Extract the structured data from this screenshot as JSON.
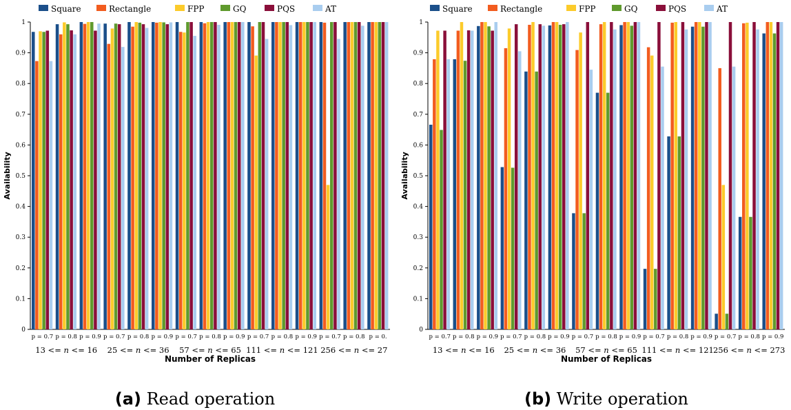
{
  "series_colors": [
    "#1b4f8a",
    "#f25c1f",
    "#fccb2b",
    "#5f9a2d",
    "#8a0f3a",
    "#a9cdef"
  ],
  "chart_data": [
    {
      "type": "bar",
      "caption_letter": "(a)",
      "caption": "Read operation",
      "xlabel": "Number of Replicas",
      "ylabel": "Availability",
      "ylim": [
        0,
        1
      ],
      "yticks": [
        "0",
        "0.1",
        "0.2",
        "0.3",
        "0.4",
        "0.5",
        "0.6",
        "0.7",
        "0.8",
        "0.9",
        "1"
      ],
      "legend_position": "top",
      "grid": false,
      "categories": [
        "p = 0.7",
        "p = 0.8",
        "p = 0.9",
        "p = 0.7",
        "p = 0.8",
        "p = 0.9",
        "p = 0.7",
        "p = 0.8",
        "p = 0.9",
        "p = 0.7",
        "p = 0.8",
        "p = 0.9",
        "p = 0.7",
        "p = 0.8",
        "p = 0."
      ],
      "groups": [
        "13 <= n <= 16",
        "25 <= n <= 36",
        "57 <= n <= 65",
        "111 <= n <= 121",
        "256 <= n <= 27"
      ],
      "series": [
        {
          "name": "Square",
          "values": [
            0.968,
            0.993,
            1.0,
            0.995,
            1.0,
            1.0,
            1.0,
            1.0,
            1.0,
            1.0,
            1.0,
            1.0,
            1.0,
            1.0,
            1.0
          ]
        },
        {
          "name": "Rectangle",
          "values": [
            0.873,
            0.96,
            0.994,
            0.929,
            0.985,
            0.998,
            0.968,
            0.996,
            1.0,
            0.986,
            1.0,
            1.0,
            0.998,
            1.0,
            1.0
          ]
        },
        {
          "name": "FPP",
          "values": [
            0.97,
            0.999,
            1.0,
            0.979,
            1.0,
            1.0,
            0.966,
            1.0,
            1.0,
            0.891,
            1.0,
            1.0,
            0.47,
            1.0,
            1.0
          ]
        },
        {
          "name": "GQ",
          "values": [
            0.968,
            0.993,
            1.0,
            0.995,
            0.998,
            0.999,
            1.0,
            1.0,
            1.0,
            1.0,
            1.0,
            1.0,
            1.0,
            1.0,
            1.0
          ]
        },
        {
          "name": "PQS",
          "values": [
            0.972,
            0.973,
            0.972,
            0.993,
            0.993,
            0.993,
            1.0,
            1.0,
            1.0,
            1.0,
            1.0,
            1.0,
            1.0,
            1.0,
            1.0
          ]
        },
        {
          "name": "AT",
          "values": [
            0.873,
            0.96,
            0.995,
            0.919,
            0.981,
            0.999,
            0.955,
            0.991,
            1.0,
            0.945,
            0.99,
            1.0,
            0.945,
            0.988,
            1.0
          ]
        }
      ]
    },
    {
      "type": "bar",
      "caption_letter": "(b)",
      "caption": "Write operation",
      "xlabel": "Number of Replicas",
      "ylabel": "Availability",
      "ylim": [
        0,
        1
      ],
      "yticks": [
        "0",
        "0.1",
        "0.2",
        "0.3",
        "0.4",
        "0.5",
        "0.6",
        "0.7",
        "0.8",
        "0.9",
        "1"
      ],
      "legend_position": "top",
      "grid": false,
      "categories": [
        "p = 0.7",
        "p = 0.8",
        "p = 0.9",
        "p = 0.7",
        "p = 0.8",
        "p = 0.9",
        "p = 0.7",
        "p = 0.8",
        "p = 0.9",
        "p = 0.7",
        "p = 0.8",
        "p = 0.9",
        "p = 0.7",
        "p = 0.8",
        "p = 0.9"
      ],
      "groups": [
        "13 <= n <= 16",
        "25 <= n <= 36",
        "57 <= n <= 65",
        "111 <= n <= 121",
        "256 <= n <= 273"
      ],
      "series": [
        {
          "name": "Square",
          "values": [
            0.666,
            0.879,
            0.987,
            0.528,
            0.839,
            0.989,
            0.378,
            0.77,
            0.99,
            0.197,
            0.628,
            0.985,
            0.051,
            0.366,
            0.963
          ]
        },
        {
          "name": "Rectangle",
          "values": [
            0.879,
            0.972,
            1.0,
            0.915,
            0.991,
            1.0,
            0.909,
            0.993,
            1.0,
            0.918,
            0.998,
            1.0,
            0.85,
            0.996,
            1.0
          ]
        },
        {
          "name": "FPP",
          "values": [
            0.972,
            1.0,
            1.0,
            0.979,
            1.0,
            1.0,
            0.966,
            1.0,
            1.0,
            0.891,
            1.0,
            1.0,
            0.47,
            0.998,
            1.0
          ]
        },
        {
          "name": "GQ",
          "values": [
            0.649,
            0.874,
            0.986,
            0.526,
            0.839,
            0.991,
            0.378,
            0.77,
            0.988,
            0.197,
            0.628,
            0.985,
            0.051,
            0.366,
            0.963
          ]
        },
        {
          "name": "PQS",
          "values": [
            0.972,
            0.973,
            0.972,
            0.993,
            0.993,
            0.993,
            1.0,
            1.0,
            1.0,
            1.0,
            1.0,
            1.0,
            1.0,
            1.0,
            1.0
          ]
        },
        {
          "name": "AT",
          "values": [
            0.879,
            0.972,
            1.0,
            0.905,
            0.988,
            1.0,
            0.845,
            0.976,
            1.0,
            0.855,
            0.976,
            1.0,
            0.855,
            0.976,
            1.0
          ]
        }
      ]
    }
  ]
}
